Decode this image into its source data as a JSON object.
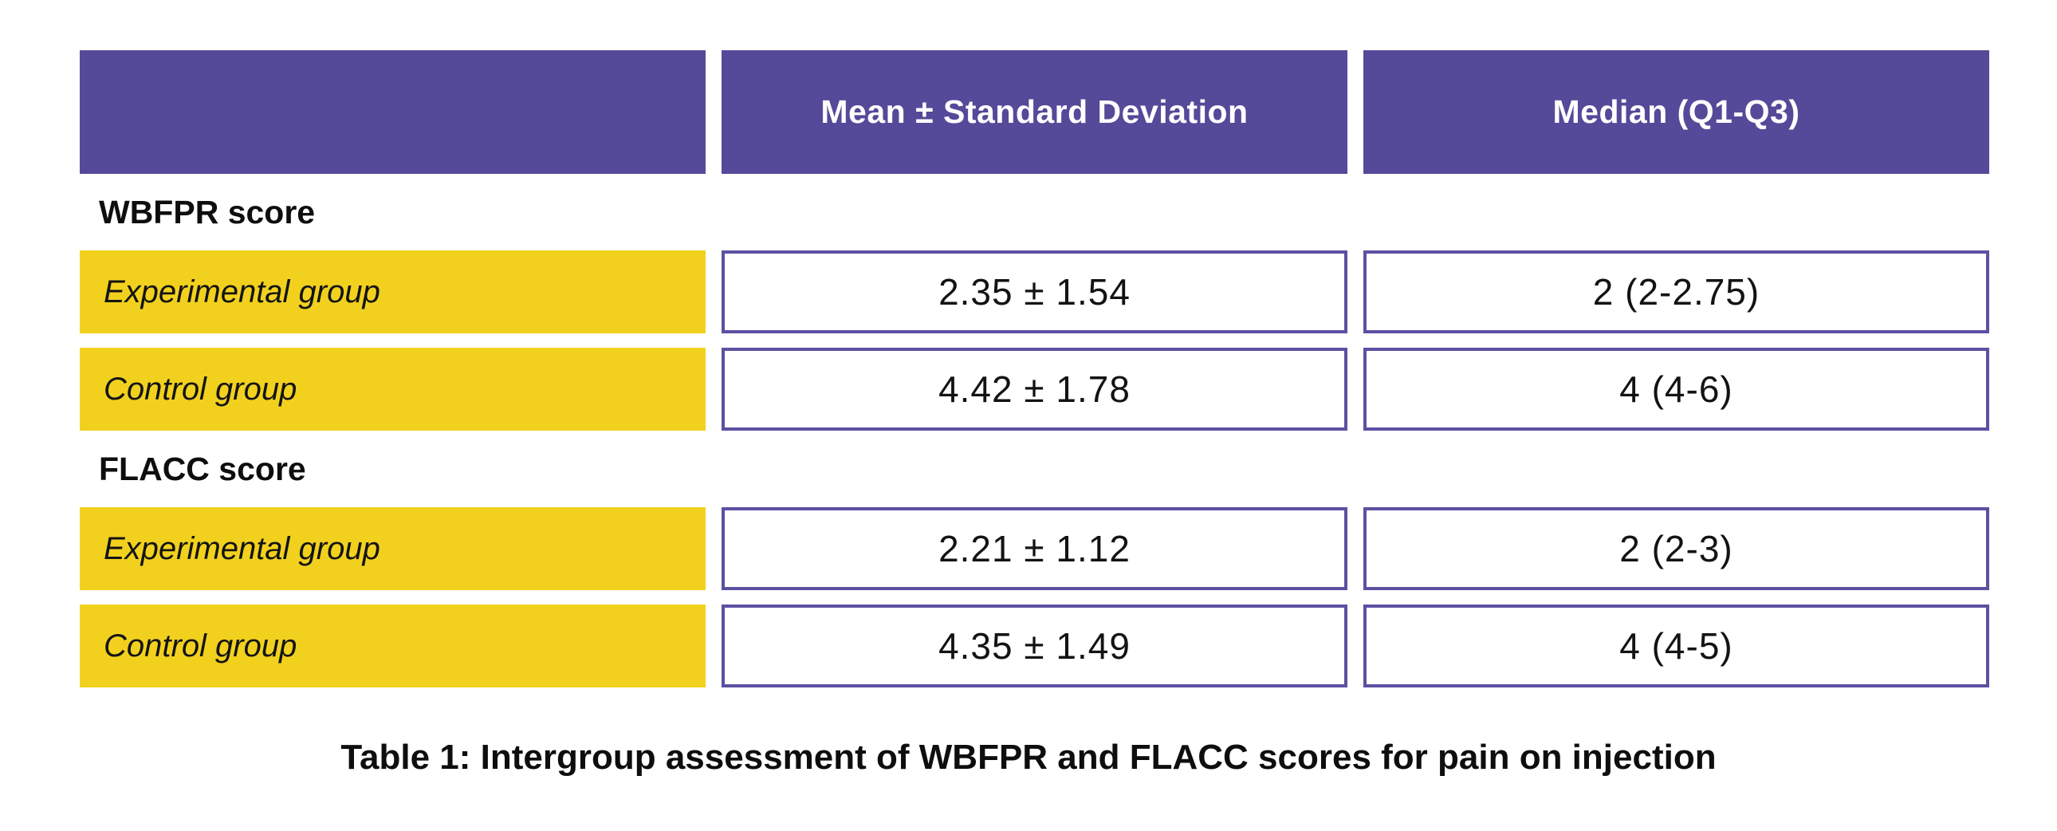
{
  "chart_data": {
    "type": "table",
    "title": "Table 1: Intergroup assessment of WBFPR and FLACC scores for pain on injection",
    "columns": [
      "",
      "Mean ± Standard Deviation",
      "Median (Q1-Q3)"
    ],
    "sections": [
      {
        "label": "WBFPR score",
        "rows": [
          {
            "group": "Experimental group",
            "mean_sd": "2.35 ± 1.54",
            "median_q1_q3": "2 (2-2.75)"
          },
          {
            "group": "Control group",
            "mean_sd": "4.42 ± 1.78",
            "median_q1_q3": "4 (4-6)"
          }
        ]
      },
      {
        "label": "FLACC score",
        "rows": [
          {
            "group": "Experimental group",
            "mean_sd": "2.21 ± 1.12",
            "median_q1_q3": "2 (2-3)"
          },
          {
            "group": "Control group",
            "mean_sd": "4.35 ± 1.49",
            "median_q1_q3": "4 (4-5)"
          }
        ]
      }
    ],
    "layout": {
      "legend": "none",
      "grid": "off"
    }
  },
  "colors": {
    "header_bg": "#554999",
    "row_label_bg": "#F2D11E",
    "cell_border": "#5B51A2",
    "text_color": "#151413",
    "page_bg": "#FFFFFF",
    "header_text": "#FFFFFF"
  }
}
